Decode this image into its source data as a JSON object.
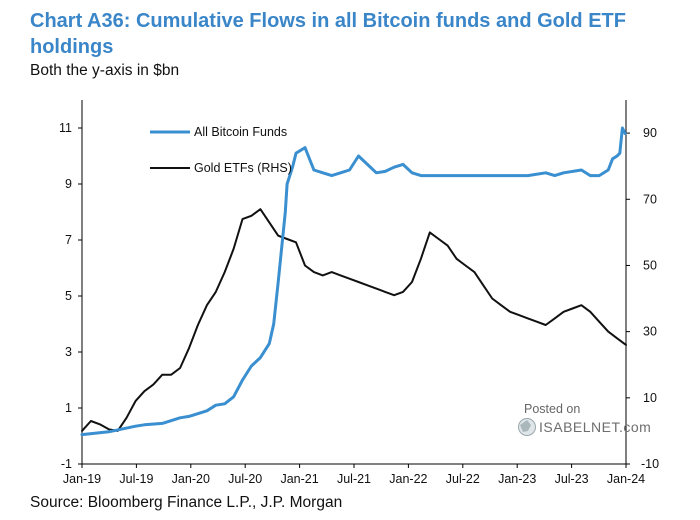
{
  "title": "Chart A36: Cumulative Flows in all Bitcoin funds and Gold ETF holdings",
  "subtitle": "Both the y-axis in $bn",
  "source": "Source: Bloomberg Finance L.P., J.P. Morgan",
  "watermark": {
    "posted_on": "Posted on",
    "brand": "ISABELNET.com"
  },
  "colors": {
    "bitcoin": "#3a8fd0",
    "gold": "#111111",
    "title": "#3a86c8"
  },
  "chart_data": {
    "type": "line",
    "title": "Chart A36: Cumulative Flows in all Bitcoin funds and Gold ETF holdings",
    "ylabel": "Both the y-axis in $bn",
    "x_ticks": [
      "Jan-19",
      "Jul-19",
      "Jan-20",
      "Jul-20",
      "Jan-21",
      "Jul-21",
      "Jan-22",
      "Jul-22",
      "Jan-23",
      "Jul-23",
      "Jan-24"
    ],
    "xlim": [
      0,
      61
    ],
    "left_axis": {
      "min": -1,
      "max": 12,
      "ticks": [
        "-1",
        "1",
        "3",
        "5",
        "7",
        "9",
        "11"
      ]
    },
    "right_axis": {
      "min": -10,
      "max": 100,
      "ticks": [
        "-10",
        "10",
        "30",
        "50",
        "70",
        "90"
      ]
    },
    "legend": [
      {
        "label": "All Bitcoin Funds",
        "series": "bitcoin"
      },
      {
        "label": "Gold ETFs (RHS)",
        "series": "gold"
      }
    ],
    "series": [
      {
        "name": "All Bitcoin Funds",
        "axis": "left",
        "color": "#3a8fd0",
        "x": [
          0,
          3,
          6,
          7,
          9,
          11,
          12,
          14,
          15,
          16,
          17,
          18,
          19,
          20,
          21,
          21.5,
          22,
          22.8,
          23,
          23.6,
          24,
          25,
          26,
          27,
          28,
          29,
          30,
          31,
          32,
          33,
          34,
          35,
          36,
          37,
          38,
          39,
          40,
          42,
          44,
          46,
          48,
          50,
          52,
          53,
          54,
          56,
          57,
          58,
          59,
          59.5,
          60,
          60.3,
          60.6,
          60.9
        ],
        "y": [
          0.05,
          0.15,
          0.35,
          0.4,
          0.45,
          0.65,
          0.7,
          0.9,
          1.1,
          1.15,
          1.4,
          2.0,
          2.5,
          2.8,
          3.3,
          4.0,
          5.5,
          8.0,
          9.0,
          9.6,
          10.1,
          10.3,
          9.5,
          9.4,
          9.3,
          9.4,
          9.5,
          10.0,
          9.7,
          9.4,
          9.45,
          9.6,
          9.7,
          9.4,
          9.3,
          9.3,
          9.3,
          9.3,
          9.3,
          9.3,
          9.3,
          9.3,
          9.4,
          9.3,
          9.4,
          9.5,
          9.3,
          9.3,
          9.5,
          9.9,
          10.0,
          10.1,
          11.0,
          10.8
        ]
      },
      {
        "name": "Gold ETFs (RHS)",
        "axis": "right",
        "color": "#111111",
        "x": [
          0,
          1,
          2,
          3,
          4,
          5,
          6,
          7,
          8,
          9,
          10,
          11,
          12,
          13,
          14,
          15,
          16,
          17,
          18,
          19,
          20,
          21,
          22,
          23,
          24,
          25,
          26,
          27,
          28,
          29,
          30,
          31,
          32,
          33,
          34,
          35,
          36,
          37,
          38,
          39,
          40,
          41,
          42,
          43,
          44,
          45,
          46,
          47,
          48,
          49,
          50,
          51,
          52,
          53,
          54,
          55,
          56,
          57,
          58,
          59,
          60,
          61
        ],
        "y": [
          0,
          3,
          2,
          0.5,
          0,
          4,
          9,
          12,
          14,
          17,
          17,
          19,
          25,
          32,
          38,
          42,
          48,
          55,
          64,
          65,
          67,
          63,
          59,
          58,
          57,
          50,
          48,
          47,
          48,
          47,
          46,
          45,
          44,
          43,
          42,
          41,
          42,
          45,
          52,
          60,
          58,
          56,
          52,
          50,
          48,
          44,
          40,
          38,
          36,
          35,
          34,
          33,
          32,
          34,
          36,
          37,
          38,
          36,
          33,
          30,
          28,
          26
        ]
      }
    ]
  }
}
